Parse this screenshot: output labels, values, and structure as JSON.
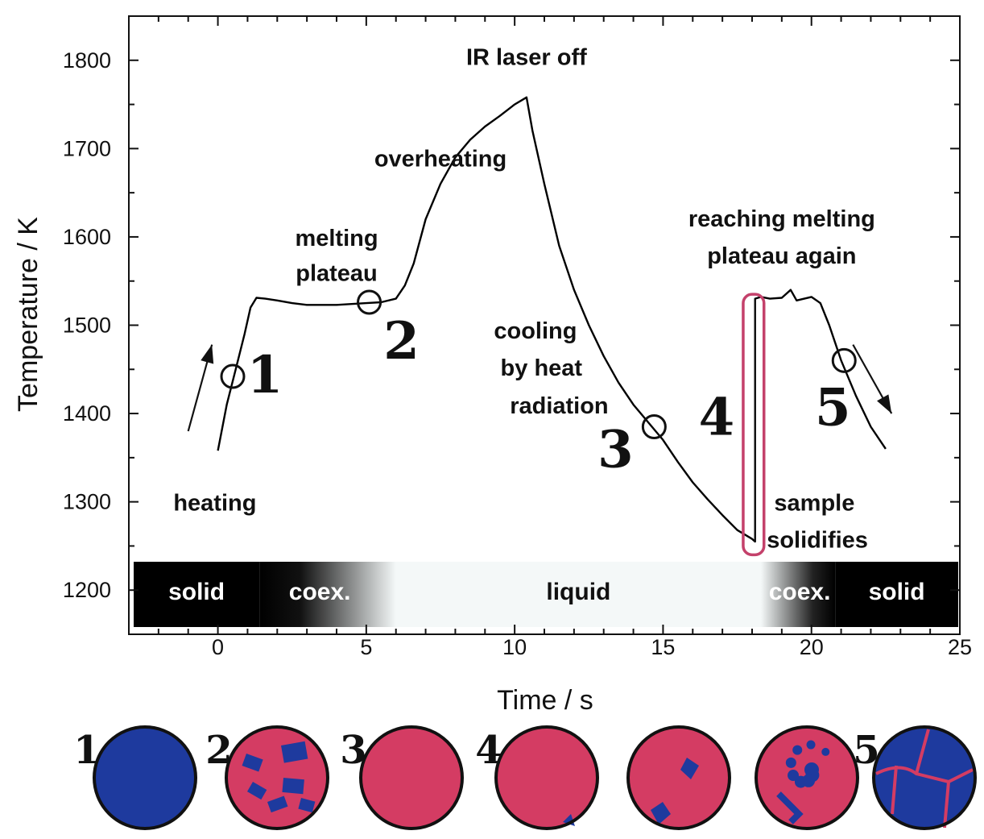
{
  "chart_data": {
    "type": "line",
    "title": "",
    "xlabel": "Time / s",
    "ylabel": "Temperature / K",
    "xlim": [
      -3,
      25
    ],
    "ylim": [
      1150,
      1850
    ],
    "x_ticks": [
      0,
      5,
      10,
      15,
      20,
      25
    ],
    "y_ticks": [
      1200,
      1300,
      1400,
      1500,
      1600,
      1700,
      1800
    ],
    "grid": false,
    "legend": "none",
    "series": [
      {
        "color": "#000000",
        "x": [
          0.0,
          0.3,
          0.6,
          0.9,
          1.1,
          1.3,
          1.6,
          2.0,
          2.5,
          3.0,
          3.5,
          4.0,
          4.5,
          5.0,
          5.5,
          6.0,
          6.3,
          6.6,
          7.0,
          7.5,
          8.0,
          8.5,
          9.0,
          9.5,
          10.0,
          10.4,
          10.6,
          11.0,
          11.5,
          12.0,
          12.5,
          13.0,
          13.5,
          14.0,
          14.5,
          15.0,
          15.5,
          16.0,
          16.5,
          17.0,
          17.5,
          18.0,
          18.1,
          18.1,
          18.3,
          18.6,
          19.0,
          19.3,
          19.5,
          20.0,
          20.3,
          20.6,
          21.0,
          21.5,
          22.0,
          22.5
        ],
        "y": [
          1358,
          1410,
          1450,
          1490,
          1520,
          1531,
          1530,
          1528,
          1525,
          1523,
          1523,
          1523,
          1524,
          1525,
          1526,
          1530,
          1545,
          1570,
          1620,
          1660,
          1690,
          1710,
          1725,
          1737,
          1750,
          1758,
          1720,
          1660,
          1590,
          1540,
          1500,
          1465,
          1435,
          1410,
          1390,
          1370,
          1345,
          1322,
          1303,
          1285,
          1268,
          1258,
          1255,
          1530,
          1532,
          1530,
          1531,
          1540,
          1528,
          1532,
          1525,
          1500,
          1460,
          1420,
          1385,
          1360
        ]
      }
    ],
    "arrows": [
      {
        "from": [
          -1.0,
          1380
        ],
        "to": [
          -0.2,
          1478
        ]
      },
      {
        "from": [
          21.4,
          1478
        ],
        "to": [
          22.7,
          1400
        ]
      }
    ],
    "circle_markers": [
      {
        "label": "1",
        "x": 0.5,
        "y": 1442
      },
      {
        "label": "2",
        "x": 5.1,
        "y": 1526
      },
      {
        "label": "3",
        "x": 14.7,
        "y": 1385
      },
      {
        "label": "5",
        "x": 21.1,
        "y": 1460
      }
    ],
    "marker_4": {
      "label": "4",
      "x_range": [
        17.7,
        18.4
      ],
      "y_range": [
        1240,
        1535
      ],
      "color": "#c4416b"
    },
    "annotations": [
      {
        "text": "IR laser off",
        "x": 10.4,
        "y": 1795
      },
      {
        "text": "overheating",
        "x": 7.5,
        "y": 1680
      },
      {
        "text": "melting",
        "x": 4.0,
        "y": 1590
      },
      {
        "text": "plateau",
        "x": 4.0,
        "y": 1550
      },
      {
        "text": "cooling",
        "x": 10.7,
        "y": 1485
      },
      {
        "text": "by heat",
        "x": 10.9,
        "y": 1443
      },
      {
        "text": "radiation",
        "x": 11.5,
        "y": 1400
      },
      {
        "text": "reaching melting",
        "x": 19.0,
        "y": 1612
      },
      {
        "text": "plateau again",
        "x": 19.0,
        "y": 1570
      },
      {
        "text": "heating",
        "x": -0.1,
        "y": 1290
      },
      {
        "text": "sample",
        "x": 20.1,
        "y": 1290
      },
      {
        "text": "solidifies",
        "x": 20.2,
        "y": 1248
      }
    ],
    "phase_band": [
      {
        "label": "solid",
        "from": -3,
        "to": 1.4
      },
      {
        "label": "coex.",
        "from": 1.4,
        "to": 6.0
      },
      {
        "label": "liquid",
        "from": 6.0,
        "to": 18.3
      },
      {
        "label": "coex.",
        "from": 18.3,
        "to": 20.8
      },
      {
        "label": "solid",
        "from": 20.8,
        "to": 25
      }
    ]
  },
  "sample_discs": [
    {
      "label": "1",
      "state": "solid"
    },
    {
      "label": "2",
      "state": "coexistence"
    },
    {
      "label": "3",
      "state": "liquid"
    },
    {
      "label": "4",
      "state": "liquid-nucleating"
    },
    {
      "label": "",
      "state": "liquid-crystals-growing"
    },
    {
      "label": "",
      "state": "liquid-dendrites"
    },
    {
      "label": "5",
      "state": "solid-grains"
    }
  ],
  "colors": {
    "solid": "#1e3a9e",
    "liquid": "#d43c63",
    "marker_4": "#c4416b"
  }
}
